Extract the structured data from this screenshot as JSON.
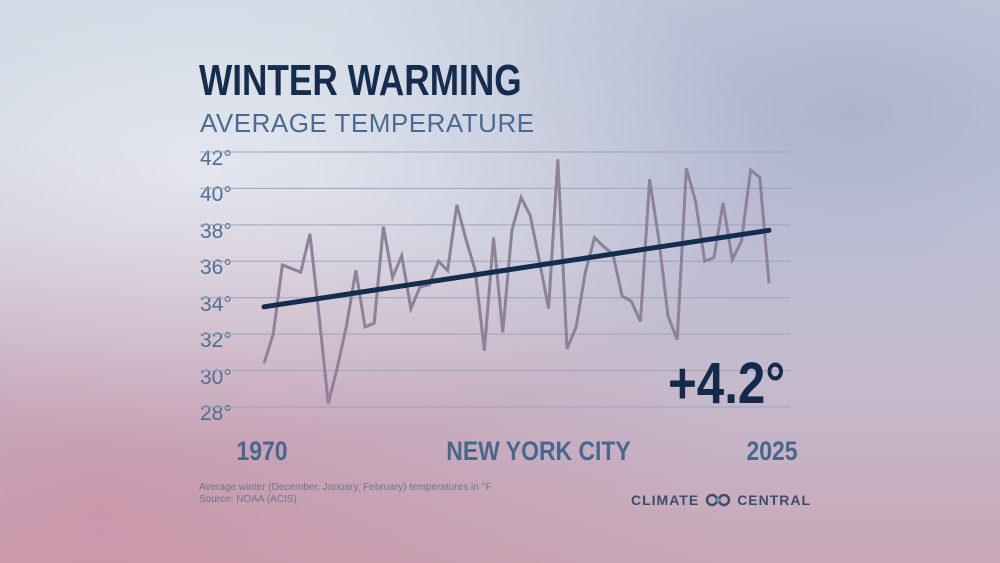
{
  "chart_data": {
    "type": "line",
    "title": "WINTER WARMING",
    "subtitle": "AVERAGE TEMPERATURE",
    "location": "NEW YORK CITY",
    "x_start_label": "1970",
    "x_end_label": "2025",
    "xlim": [
      1970,
      2025
    ],
    "ylim": [
      28,
      42
    ],
    "y_ticks": [
      42,
      40,
      38,
      36,
      34,
      32,
      30,
      28
    ],
    "y_tick_labels": [
      "42°",
      "40°",
      "38°",
      "36°",
      "34°",
      "32°",
      "30°",
      "28°"
    ],
    "grid": true,
    "x": [
      1970,
      1971,
      1972,
      1973,
      1974,
      1975,
      1976,
      1977,
      1978,
      1979,
      1980,
      1981,
      1982,
      1983,
      1984,
      1985,
      1986,
      1987,
      1988,
      1989,
      1990,
      1991,
      1992,
      1993,
      1994,
      1995,
      1996,
      1997,
      1998,
      1999,
      2000,
      2001,
      2002,
      2003,
      2004,
      2005,
      2006,
      2007,
      2008,
      2009,
      2010,
      2011,
      2012,
      2013,
      2014,
      2015,
      2016,
      2017,
      2018,
      2019,
      2020,
      2021,
      2022,
      2023,
      2024,
      2025
    ],
    "values": [
      30.4,
      32.0,
      35.8,
      35.6,
      35.4,
      37.5,
      33.0,
      28.2,
      30.2,
      32.5,
      35.5,
      32.4,
      32.6,
      37.9,
      35.1,
      36.3,
      33.4,
      34.6,
      34.7,
      36.0,
      35.5,
      39.1,
      37.2,
      35.5,
      31.1,
      37.3,
      32.1,
      37.7,
      39.5,
      38.5,
      36.0,
      33.4,
      41.6,
      31.2,
      32.4,
      35.4,
      37.3,
      36.8,
      36.4,
      34.1,
      33.8,
      32.7,
      40.5,
      37.2,
      33.0,
      31.7,
      41.1,
      39.3,
      36.0,
      36.2,
      39.2,
      36.1,
      37.1,
      41.0,
      40.6,
      34.8
    ],
    "trend": {
      "start": [
        1970,
        33.5
      ],
      "end": [
        2025,
        37.7
      ]
    },
    "annotation": "+4.2°",
    "colors": {
      "series": "#8e8199",
      "trend": "#142c4e",
      "grid": "#9aa6b8"
    }
  },
  "footnote": "Average winter (December, January, February) temperatures in °F",
  "source": "Source: NOAA (ACIS)",
  "logo": {
    "left": "CLIMATE",
    "right": "CENTRAL"
  }
}
